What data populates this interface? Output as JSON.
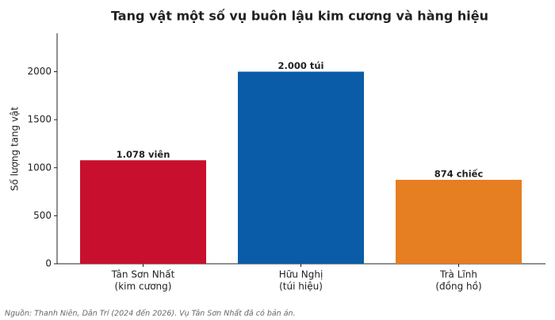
{
  "chart_data": {
    "type": "bar",
    "title": "Tang vật một số vụ buôn lậu kim cương và hàng hiệu",
    "y_label": "Số lượng tang vật",
    "categories": [
      [
        "Tân Sơn Nhất",
        "(kim cương)"
      ],
      [
        "Hữu Nghị",
        "(túi hiệu)"
      ],
      [
        "Trà Lĩnh",
        "(đồng hồ)"
      ]
    ],
    "values": [
      1078,
      2000,
      874
    ],
    "value_labels": [
      "1.078 viên",
      "2.000 túi",
      "874 chiếc"
    ],
    "colors": [
      "#c8102e",
      "#0a5ca8",
      "#e67e22"
    ],
    "ylim": [
      0,
      2400
    ],
    "yticks": [
      0,
      500,
      1000,
      1500,
      2000
    ],
    "grid": false,
    "note": "Nguồn: Thanh Niên, Dân Trí (2024 đến 2026). Vụ Tân Sơn Nhất đã có bản án."
  }
}
